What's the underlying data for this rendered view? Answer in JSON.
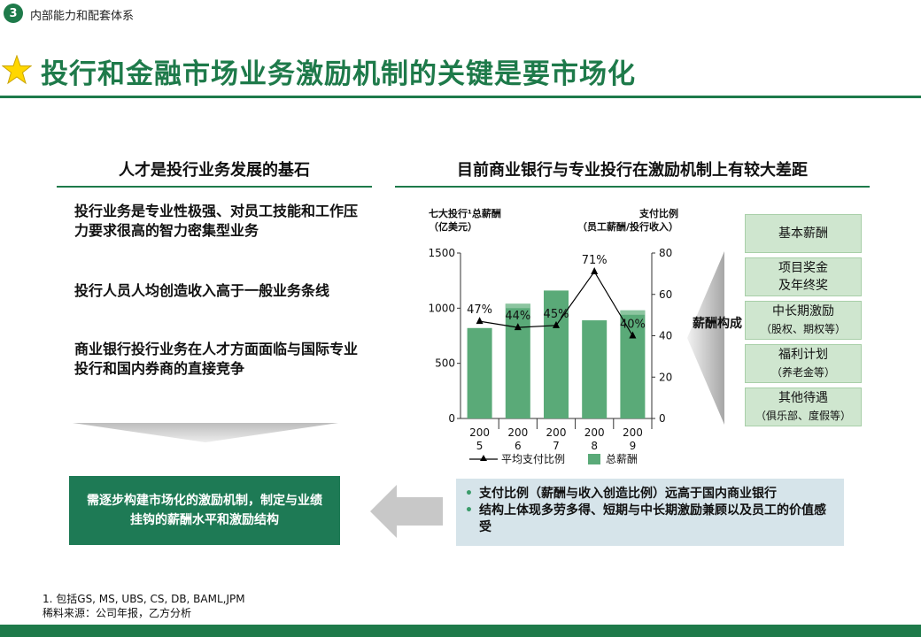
{
  "section": {
    "number": "3",
    "title": "内部能力和配套体系"
  },
  "main_title": "投行和金融市场业务激励机制的关键是要市场化",
  "left": {
    "heading": "人才是投行业务发展的基石",
    "points": [
      "投行业务是专业性极强、对员工技能和工作压力要求很高的智力密集型业务",
      "投行人员人均创造收入高于一般业务条线",
      "商业银行投行业务在人才方面面临与国际专业投行和国内券商的直接竞争"
    ],
    "conclusion": "需逐步构建市场化的激励机制，制定与业绩挂钩的薪酬水平和激励结构"
  },
  "right": {
    "heading": "目前商业银行与专业投行在激励机制上有较大差距",
    "left_axis_title_1": "七大投行¹总薪酬",
    "left_axis_title_2": "（亿美元）",
    "right_axis_title_1": "支付比例",
    "right_axis_title_2": "（员工薪酬/投行收入）",
    "compose_label": "薪酬构成",
    "components": [
      {
        "main": "基本薪酬",
        "sub": ""
      },
      {
        "main": "项目奖金",
        "sub": "及年终奖"
      },
      {
        "main": "中长期激励",
        "sub": "（股权、期权等）"
      },
      {
        "main": "福利计划",
        "sub": "（养老金等）"
      },
      {
        "main": "其他待遇",
        "sub": "（俱乐部、度假等）"
      }
    ],
    "findings": [
      "支付比例（薪酬与收入创造比例）远高于国内商业银行",
      "结构上体现多劳多得、短期与中长期激励兼顾以及员工的价值感受"
    ]
  },
  "chart_data": {
    "type": "bar",
    "categories": [
      "2005",
      "2006",
      "2007",
      "2008",
      "2009"
    ],
    "series": [
      {
        "name": "总薪酬",
        "type": "bar",
        "axis": "left",
        "values": [
          820,
          1040,
          1160,
          890,
          980
        ],
        "stack_lighter_top": [
          0,
          40,
          0,
          0,
          40
        ],
        "color": "#5aaa78"
      },
      {
        "name": "平均支付比例",
        "type": "line",
        "axis": "right",
        "values": [
          47,
          44,
          45,
          71,
          40
        ],
        "labels": [
          "47%",
          "44%",
          "45%",
          "71%",
          "40%"
        ],
        "color": "#000000"
      }
    ],
    "ylim_left": [
      0,
      1500
    ],
    "yticks_left": [
      "0",
      "500",
      "1000",
      "1500"
    ],
    "ylim_right": [
      0,
      80
    ],
    "yticks_right": [
      "0",
      "20",
      "40",
      "60",
      "80"
    ],
    "legend": "bottom"
  },
  "footnotes": [
    "1. 包括GS, MS, UBS, CS, DB, BAML,JPM",
    "稀料来源：公司年报，乙方分析"
  ]
}
